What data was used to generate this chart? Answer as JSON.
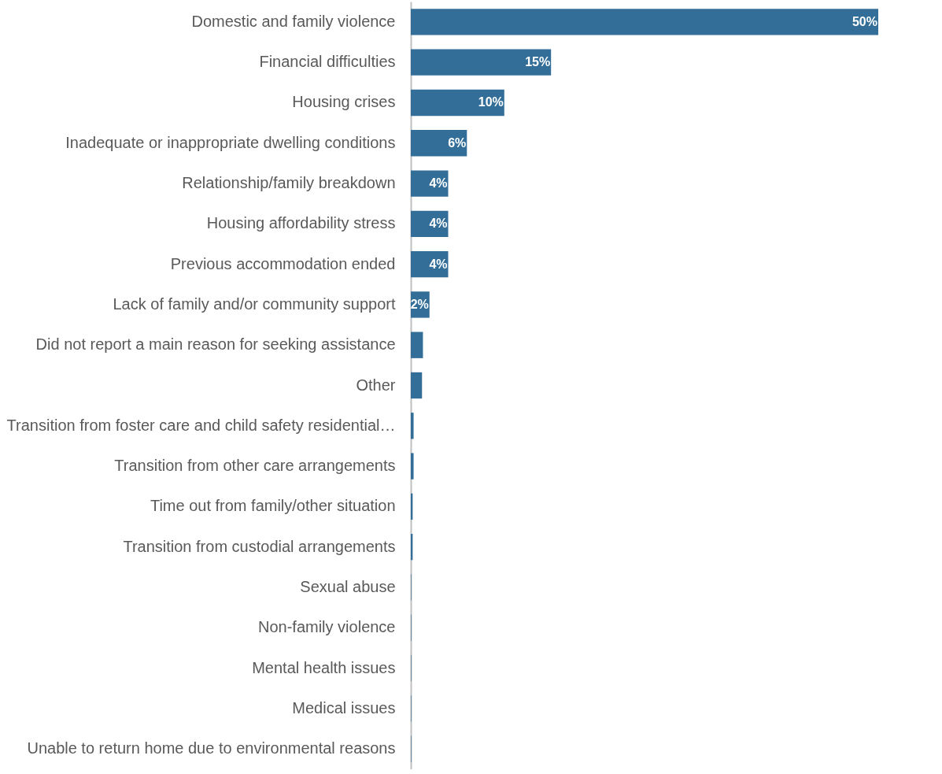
{
  "chart_data": {
    "type": "bar",
    "orientation": "horizontal",
    "color": "#336e99",
    "categories": [
      "Domestic and family violence",
      "Financial difficulties",
      "Housing crises",
      "Inadequate or inappropriate dwelling conditions",
      "Relationship/family breakdown",
      "Housing affordability stress",
      "Previous accommodation ended",
      "Lack of family and/or community support",
      "Did not report a main reason for seeking assistance",
      "Other",
      "Transition from foster care and child safety residential…",
      "Transition from other care arrangements",
      "Time out from family/other situation",
      "Transition from custodial arrangements",
      "Sexual abuse",
      "Non-family violence",
      "Mental health issues",
      "Medical issues",
      "Unable to return home due to environmental reasons"
    ],
    "values": [
      50,
      15,
      10,
      6,
      4,
      4,
      4,
      2,
      1.3,
      1.2,
      0.3,
      0.3,
      0.2,
      0.2,
      0.05,
      0.05,
      0.05,
      0.05,
      0.05
    ],
    "value_labels": [
      "50%",
      "15%",
      "10%",
      "6%",
      "4%",
      "4%",
      "4%",
      "2%",
      null,
      null,
      null,
      null,
      null,
      null,
      null,
      null,
      null,
      null,
      null
    ]
  }
}
